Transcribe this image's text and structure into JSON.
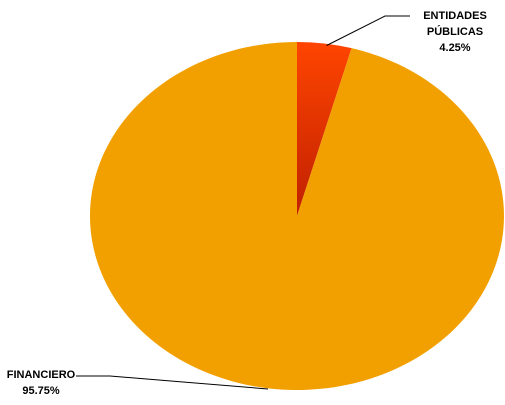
{
  "chart_data": {
    "type": "pie",
    "title": "",
    "slices": [
      {
        "label_lines": [
          "ENTIDADES",
          "PÚBLICAS"
        ],
        "value": 4.25,
        "value_text": "4.25%",
        "color": "#ff4500",
        "color_dark": "#c02000"
      },
      {
        "label_lines": [
          "FINANCIERO"
        ],
        "value": 95.75,
        "value_text": "95.75%",
        "color": "#f2a000"
      }
    ]
  }
}
